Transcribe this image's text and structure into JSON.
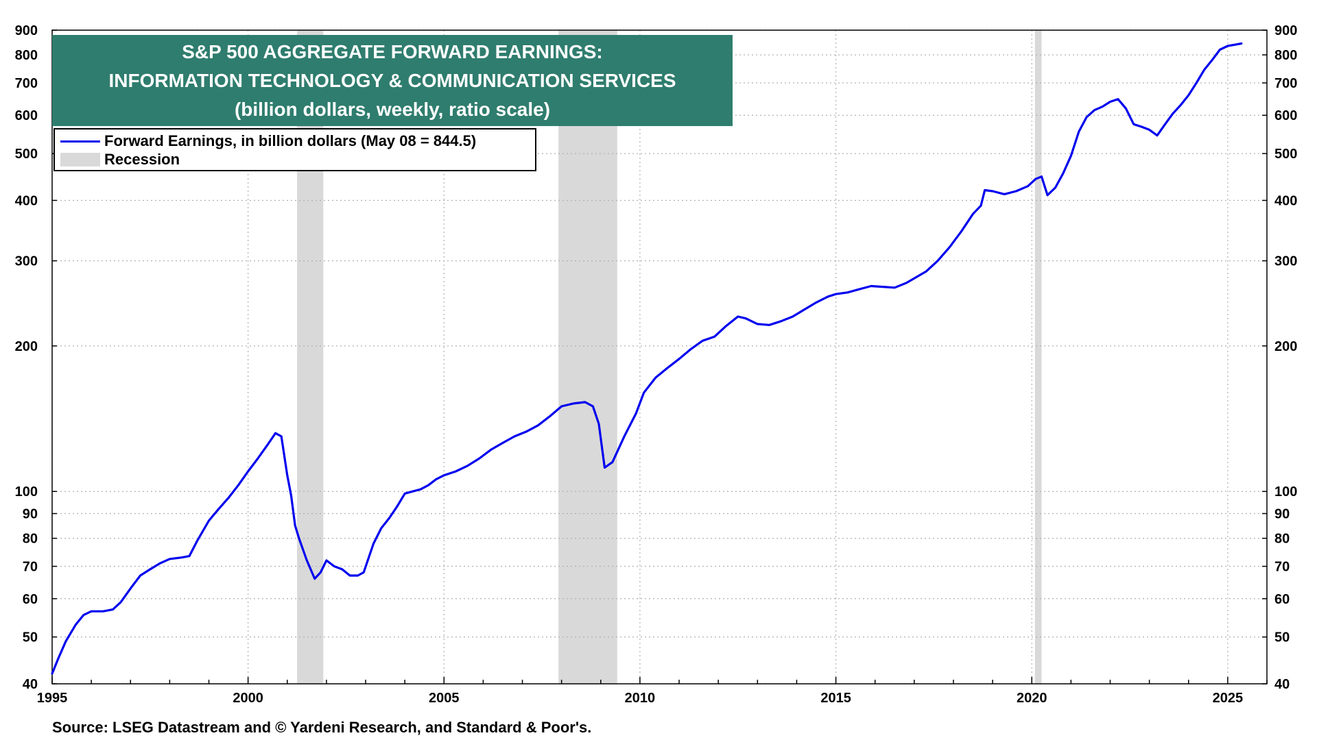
{
  "chart_data": {
    "type": "line",
    "title_lines": [
      "S&P 500 AGGREGATE FORWARD EARNINGS:",
      "INFORMATION TECHNOLOGY & COMMUNICATION SERVICES",
      "(billion dollars, weekly, ratio scale)"
    ],
    "yscale": "log",
    "ylim": [
      40,
      900
    ],
    "xlim": [
      1995,
      2026
    ],
    "y_ticks": [
      40,
      50,
      60,
      70,
      80,
      90,
      100,
      200,
      300,
      400,
      500,
      600,
      700,
      800,
      900
    ],
    "y_tick_labels": [
      "40",
      "50",
      "60",
      "70",
      "80",
      "90",
      "100",
      "200",
      "300",
      "400",
      "500",
      "600",
      "700",
      "800",
      "900"
    ],
    "x_ticks": [
      1995,
      2000,
      2005,
      2010,
      2015,
      2020,
      2025
    ],
    "x_tick_labels": [
      "1995",
      "2000",
      "2005",
      "2010",
      "2015",
      "2020",
      "2025"
    ],
    "grid": true,
    "legend_position": "top-left",
    "series": [
      {
        "name": "Forward Earnings, in billion dollars (May 08 = 844.5)",
        "color": "#0000ee",
        "x": [
          1995.0,
          1995.15,
          1995.35,
          1995.6,
          1995.8,
          1996.0,
          1996.3,
          1996.55,
          1996.75,
          1997.0,
          1997.25,
          1997.5,
          1997.75,
          1998.0,
          1998.3,
          1998.5,
          1998.7,
          1999.0,
          1999.25,
          1999.5,
          1999.75,
          2000.0,
          2000.25,
          2000.5,
          2000.7,
          2000.85,
          2001.0,
          2001.1,
          2001.2,
          2001.3,
          2001.5,
          2001.7,
          2001.85,
          2002.0,
          2002.2,
          2002.4,
          2002.6,
          2002.8,
          2002.95,
          2003.2,
          2003.4,
          2003.6,
          2003.8,
          2004.0,
          2004.2,
          2004.4,
          2004.6,
          2004.8,
          2005.0,
          2005.3,
          2005.6,
          2005.9,
          2006.2,
          2006.5,
          2006.8,
          2007.1,
          2007.4,
          2007.7,
          2008.0,
          2008.3,
          2008.6,
          2008.8,
          2008.95,
          2009.1,
          2009.3,
          2009.6,
          2009.9,
          2010.1,
          2010.4,
          2010.7,
          2011.0,
          2011.3,
          2011.6,
          2011.9,
          2012.2,
          2012.5,
          2012.7,
          2013.0,
          2013.3,
          2013.6,
          2013.9,
          2014.2,
          2014.5,
          2014.8,
          2015.0,
          2015.3,
          2015.6,
          2015.9,
          2016.2,
          2016.5,
          2016.8,
          2017.0,
          2017.3,
          2017.6,
          2017.9,
          2018.2,
          2018.5,
          2018.7,
          2018.8,
          2019.0,
          2019.3,
          2019.6,
          2019.9,
          2020.1,
          2020.25,
          2020.4,
          2020.6,
          2020.8,
          2021.0,
          2021.2,
          2021.4,
          2021.6,
          2021.8,
          2022.0,
          2022.2,
          2022.4,
          2022.6,
          2022.8,
          2023.0,
          2023.2,
          2023.4,
          2023.6,
          2023.8,
          2024.0,
          2024.2,
          2024.4,
          2024.6,
          2024.8,
          2025.0,
          2025.2,
          2025.35
        ],
        "values": [
          42,
          45,
          49,
          53,
          55.5,
          56.5,
          56.5,
          57,
          59,
          63,
          67,
          69,
          71,
          72.5,
          73,
          73.5,
          79,
          87,
          92,
          97,
          103,
          110,
          117,
          125,
          132,
          130,
          108,
          98,
          85,
          80,
          72,
          66,
          68,
          72,
          70,
          69,
          67,
          67,
          68,
          78,
          84,
          88,
          93,
          99,
          100,
          101,
          103,
          106,
          108,
          110,
          113,
          117,
          122,
          126,
          130,
          133,
          137,
          143,
          150,
          152,
          153,
          150,
          138,
          112,
          115,
          130,
          145,
          160,
          172,
          180,
          188,
          197,
          205,
          209,
          220,
          230,
          228,
          222,
          221,
          225,
          230,
          238,
          246,
          253,
          256,
          258,
          262,
          266,
          265,
          264,
          270,
          276,
          285,
          300,
          320,
          345,
          375,
          390,
          420,
          418,
          412,
          418,
          428,
          443,
          448,
          410,
          425,
          455,
          495,
          555,
          595,
          615,
          625,
          640,
          648,
          620,
          575,
          568,
          560,
          545,
          575,
          605,
          630,
          660,
          700,
          745,
          780,
          820,
          835,
          840,
          844.5
        ]
      }
    ],
    "recessions": {
      "label": "Recession",
      "color": "#d9d9d9",
      "periods": [
        [
          2001.25,
          2001.92
        ],
        [
          2007.92,
          2009.42
        ],
        [
          2020.08,
          2020.25
        ]
      ]
    },
    "source": "Source: LSEG Datastream and © Yardeni Research, and Standard & Poor's."
  }
}
